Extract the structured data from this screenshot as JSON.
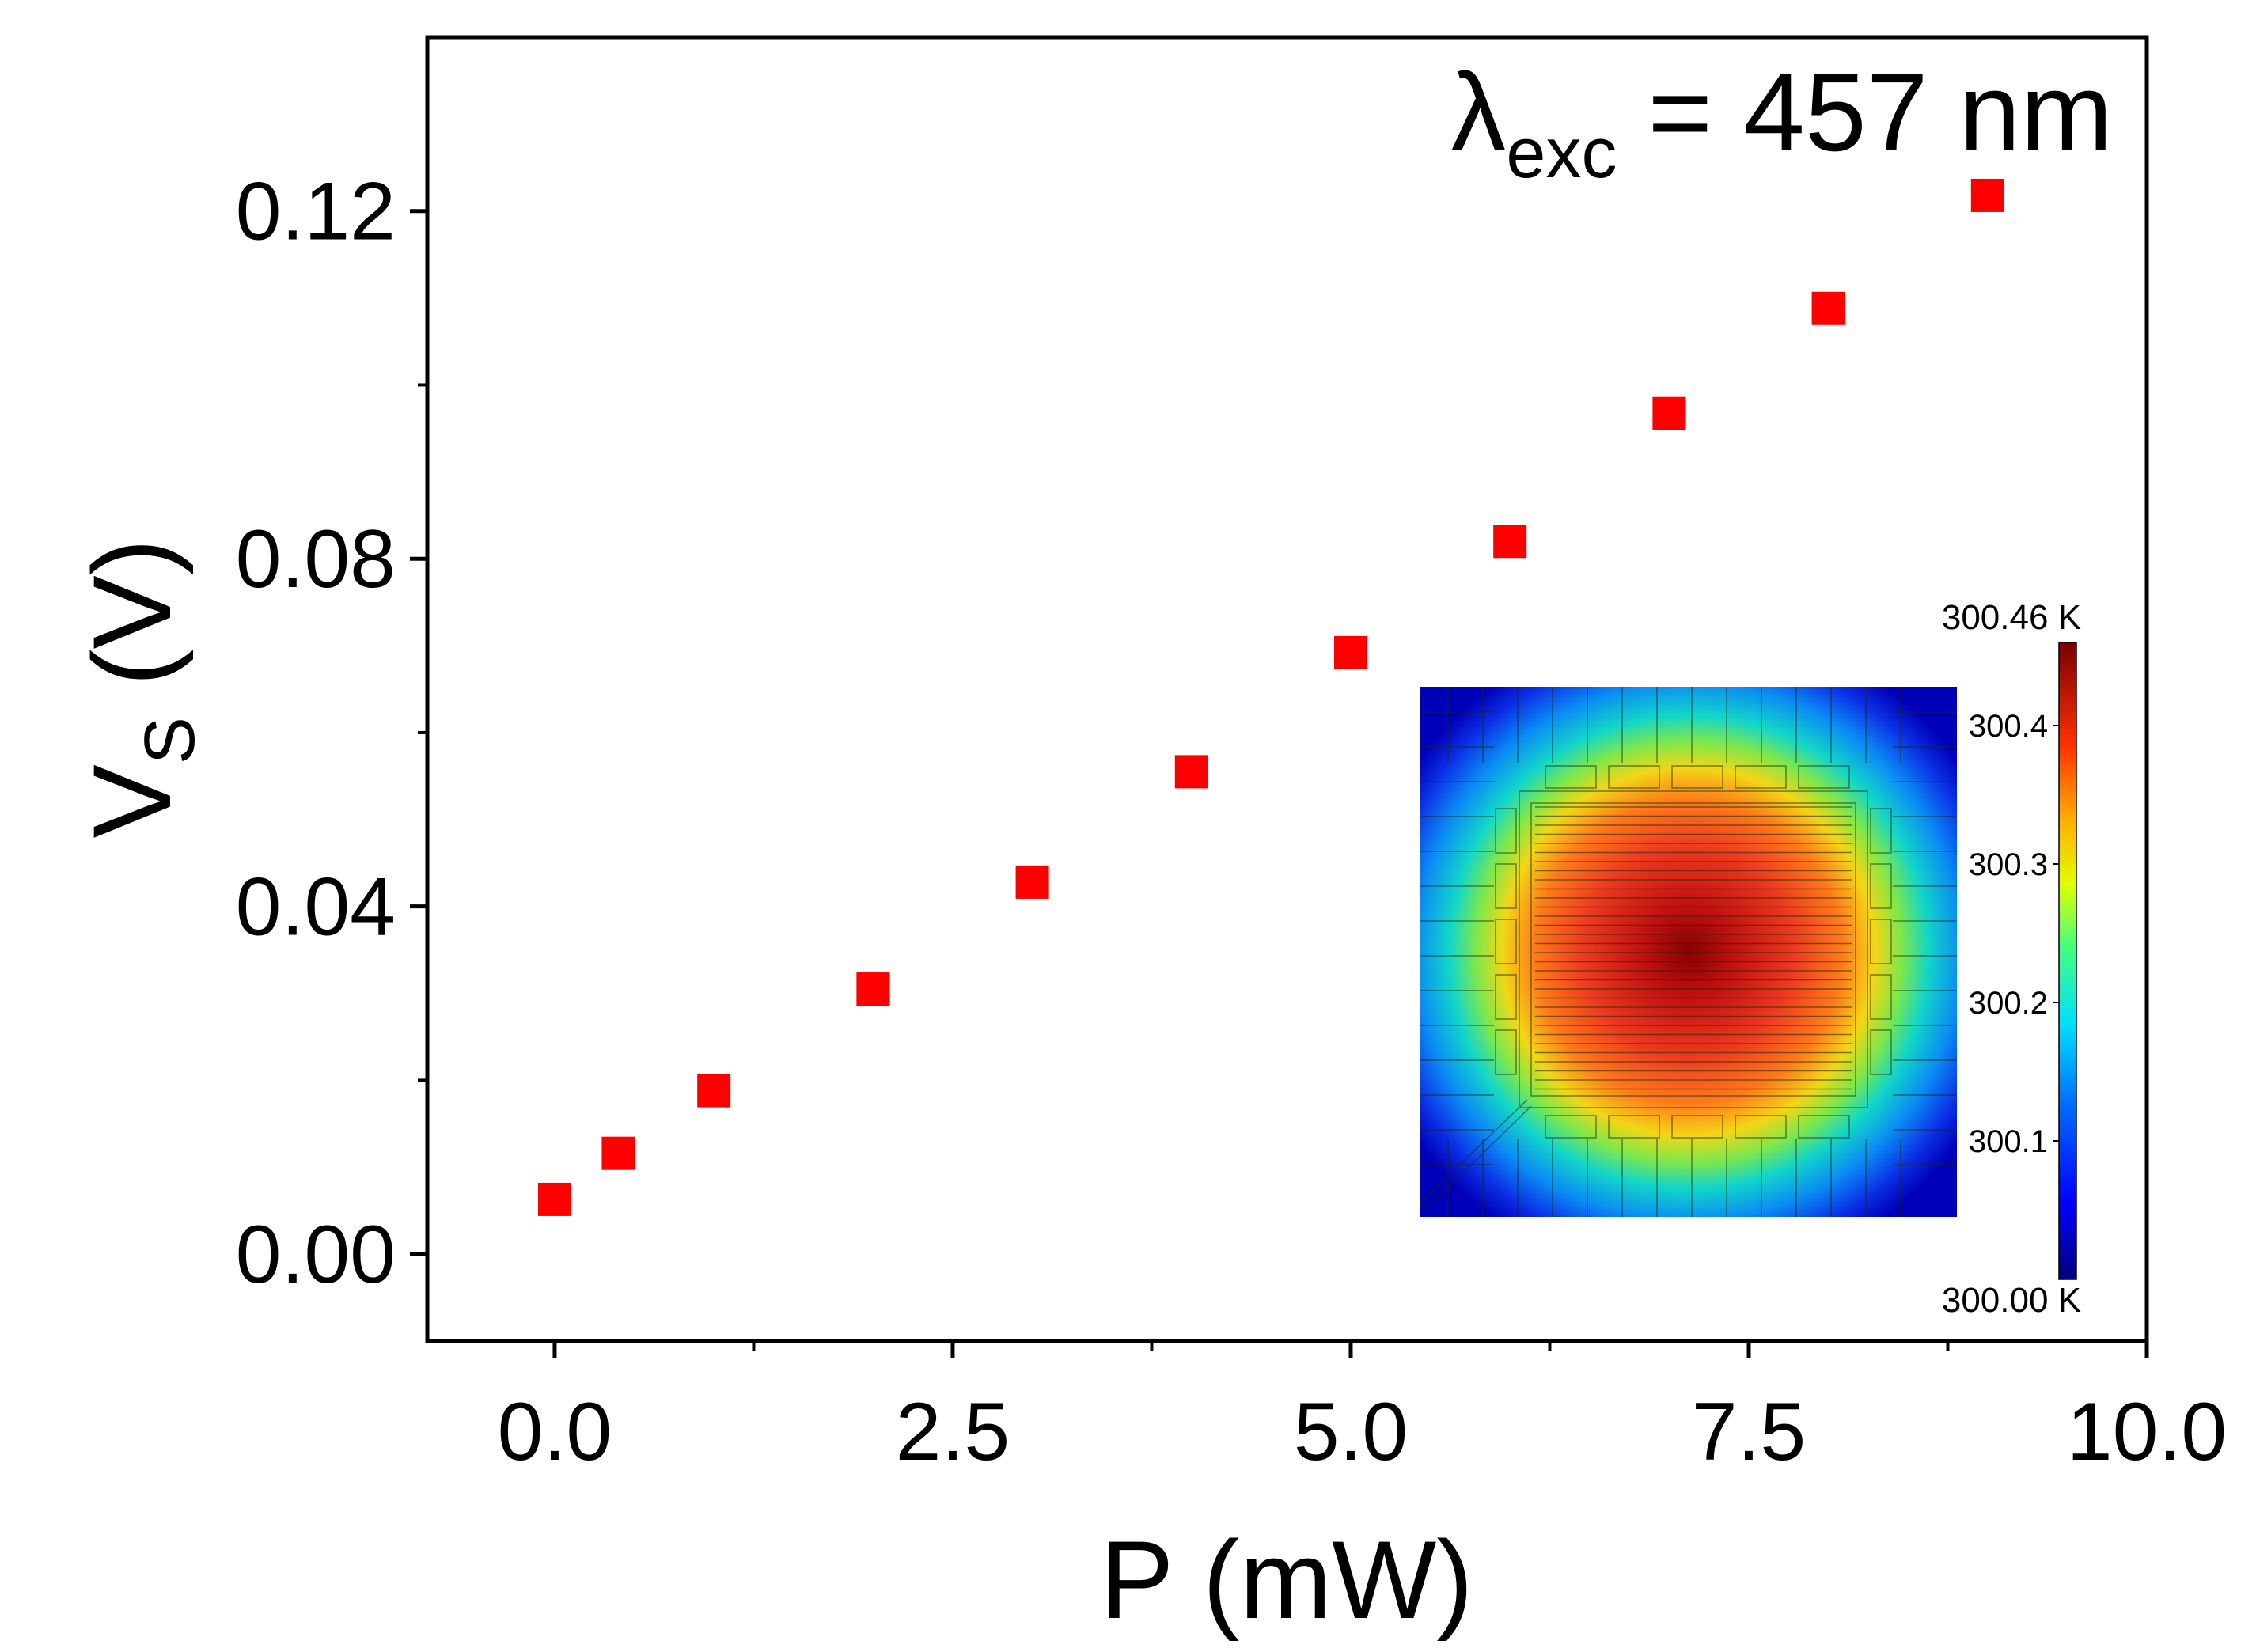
{
  "chart_data": {
    "type": "scatter",
    "title": "",
    "xlabel": "P (mW)",
    "ylabel": {
      "main": "V",
      "sub": "S",
      "unit": " (V)"
    },
    "xlim": [
      -0.8,
      10.0
    ],
    "ylim": [
      -0.01,
      0.14
    ],
    "x_ticks": [
      {
        "value": 0.0,
        "label": "0.0"
      },
      {
        "value": 2.5,
        "label": "2.5"
      },
      {
        "value": 5.0,
        "label": "5.0"
      },
      {
        "value": 7.5,
        "label": "7.5"
      },
      {
        "value": 10.0,
        "label": "10.0"
      }
    ],
    "x_minor_ticks": [
      1.25,
      3.75,
      6.25,
      8.75
    ],
    "y_ticks": [
      {
        "value": 0.0,
        "label": "0.00"
      },
      {
        "value": 0.04,
        "label": "0.04"
      },
      {
        "value": 0.08,
        "label": "0.08"
      },
      {
        "value": 0.12,
        "label": "0.12"
      }
    ],
    "y_minor_ticks": [
      0.02,
      0.06,
      0.1
    ],
    "series": [
      {
        "name": "V_S",
        "color": "#ff0000",
        "marker": "square",
        "x": [
          0.0,
          0.4,
          1.0,
          2.0,
          3.0,
          4.0,
          5.0,
          6.0,
          7.0,
          8.0,
          9.0
        ],
        "y": [
          0.0063,
          0.0116,
          0.0188,
          0.0305,
          0.0428,
          0.0555,
          0.0692,
          0.082,
          0.0967,
          0.1088,
          0.1218
        ]
      }
    ],
    "annotation": {
      "symbol": "λ",
      "subscript": "exc",
      "text": " = 457 nm",
      "position": "top-right"
    },
    "inset": {
      "description": "thermal simulation map",
      "position": "bottom-right",
      "colorbar": {
        "max_label": "300.46 K",
        "min_label": "300.00 K",
        "min": 300.0,
        "max": 300.46,
        "ticks": [
          {
            "value": 300.1,
            "label": "300.1"
          },
          {
            "value": 300.2,
            "label": "300.2"
          },
          {
            "value": 300.3,
            "label": "300.3"
          },
          {
            "value": 300.4,
            "label": "300.4"
          }
        ]
      }
    }
  }
}
